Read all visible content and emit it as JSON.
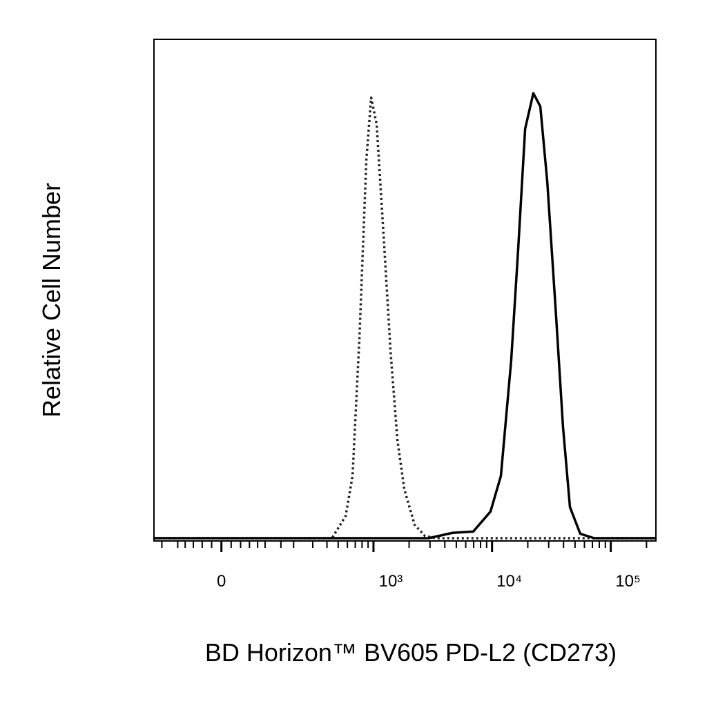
{
  "chart_data": {
    "type": "line",
    "x_label": "BD Horizon™ BV605 PD-L2 (CD273)",
    "y_label": "Relative Cell Number",
    "xscale": "biexponential",
    "xlim": [
      -180,
      240000
    ],
    "ylim": [
      0,
      100
    ],
    "xticks": [
      0,
      {
        "value": 1000,
        "label": "10³"
      },
      {
        "value": 10000,
        "label": "10⁴"
      },
      {
        "value": 100000,
        "label": "10⁵"
      }
    ],
    "xminorticks": [
      -150,
      -100,
      -80,
      -60,
      -40,
      -20,
      20,
      40,
      60,
      80,
      100,
      150,
      200,
      300,
      400,
      500,
      600,
      700,
      800,
      900,
      2000,
      3000,
      4000,
      5000,
      6000,
      7000,
      8000,
      9000,
      20000,
      30000,
      40000,
      50000,
      60000,
      70000,
      80000,
      90000,
      200000
    ],
    "series": [
      {
        "color": "#222222",
        "dash": "dotted",
        "x": [
          -180,
          442,
          580,
          664,
          760,
          870,
          956,
          1064,
          1218,
          1394,
          1594,
          1822,
          2226,
          2720,
          3328,
          240000
        ],
        "values": [
          0,
          0,
          5,
          14,
          45,
          85,
          99,
          93,
          68,
          42,
          22,
          11,
          3,
          0.5,
          0,
          0
        ]
      },
      {
        "color": "#000000",
        "dash": "solid",
        "x": [
          -180,
          2910,
          4650,
          6950,
          9710,
          11870,
          14500,
          16600,
          19000,
          22270,
          25500,
          29200,
          34600,
          39600,
          45300,
          55300,
          72500,
          240000
        ],
        "values": [
          0,
          0,
          1.2,
          1.5,
          6,
          14,
          40,
          65,
          92,
          100,
          97,
          80,
          50,
          25,
          7,
          1,
          0,
          0
        ]
      }
    ]
  }
}
